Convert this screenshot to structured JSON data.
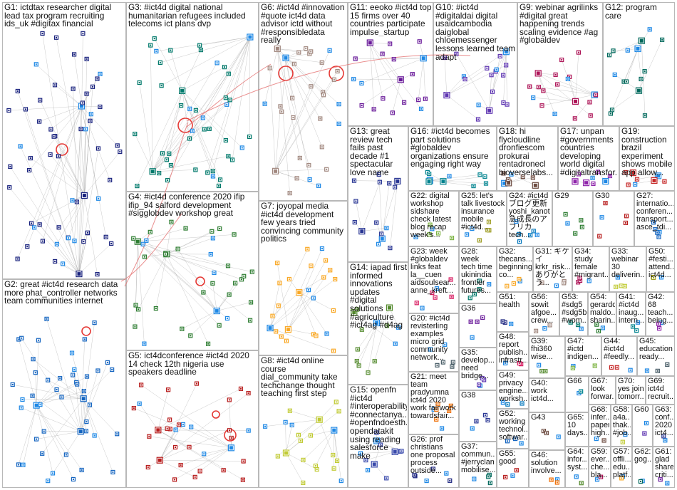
{
  "groups": [
    {
      "id": "G1",
      "label": "G1: ictdtax researcher digital lead tax program recruiting ids_uk #digitax financial"
    },
    {
      "id": "G2",
      "label": "G2: great #ict4d research data more phat_controller networks team communities internet"
    },
    {
      "id": "G3",
      "label": "G3: #ict4d digital national humanitarian refugees included telecoms ict plans dvp"
    },
    {
      "id": "G4",
      "label": "G4: #ict4d conference 2020 ifip ifip_94 salford development #sigglobdev workshop great"
    },
    {
      "id": "G5",
      "label": "G5: ict4dconference #ict4d 2020 14 check 12th nigeria use speakers deadline"
    },
    {
      "id": "G6",
      "label": "G6: #ict4d #innovation #quote ict4d data advisor ictd without #responsibledata really"
    },
    {
      "id": "G7",
      "label": "G7: joyopal media #ict4d development few years tried convincing community politics"
    },
    {
      "id": "G8",
      "label": "G8: #ict4d online course dial_community take techchange thought teaching first step"
    },
    {
      "id": "G9",
      "label": "G9: webinar agrilinks #digital great happening trends scaling evidence #ag #globaldev"
    },
    {
      "id": "G10",
      "label": "G10: #ict4d #digitaldai digital usaidcambodia daiglobal chloemessenger lessons learned team adapt"
    },
    {
      "id": "G11",
      "label": "G11: eeoko #ict4d top 15 firms over 40 countries participate impulse_startup"
    },
    {
      "id": "G12",
      "label": "G12: program care"
    },
    {
      "id": "G13",
      "label": "G13: great review tech fails past decade #1 spectacular love name"
    },
    {
      "id": "G14",
      "label": "G14: iapad first informed innovations updates #digital solutions #agriculture #ict4ag #d4ag"
    },
    {
      "id": "G15",
      "label": "G15: openfn #ict4d #interoperability #connectanya... #openfndoesth... opendatakit using reading salesforce make"
    },
    {
      "id": "G16",
      "label": "G16: #ict4d becomes part solutions #globaldev organizations ensure engaging right way"
    },
    {
      "id": "G17",
      "label": "G17: unpan #governments countries developing world digital #digitaltransfor..."
    },
    {
      "id": "G18",
      "label": "G18: hi flycloudline dronfiescom prokurai rentadronecl bioverselabs..."
    },
    {
      "id": "G19",
      "label": "G19: construction brazil experiment shows mobile app allow..."
    },
    {
      "id": "G20",
      "label": "G20: #ict4d revisterling examples micro grid community network..."
    },
    {
      "id": "G21",
      "label": "G21: meet team pradyumna ict4d 2020 work fairwork towardsfair..."
    },
    {
      "id": "G22",
      "label": "G22: digital workshop sidshare check latest blog recap week's..."
    },
    {
      "id": "G23",
      "label": "G23: week #globaldev links feat la__cuen aidsoulsear... anne_kreft..."
    },
    {
      "id": "G24",
      "label": "G24: #ict4d ブログ更新 yoshi_kanot 急成長のアフリカtech..."
    },
    {
      "id": "G25",
      "label": "G25: let's talk livestock insurance mobile #ict4d..."
    },
    {
      "id": "G26",
      "label": "G26: prof christians one proposal process outside..."
    },
    {
      "id": "G27",
      "label": "G27: internatio... conferen... transport... asce_tdi..."
    },
    {
      "id": "G28",
      "label": "G28: week tech time ukinindia frontier futures..."
    },
    {
      "id": "G29",
      "label": "G29"
    },
    {
      "id": "G30",
      "label": "G30"
    },
    {
      "id": "G31",
      "label": "G31: ギケイ krkr_risk... ありがとう..."
    },
    {
      "id": "G32",
      "label": "G32: thecans... beginning co..."
    },
    {
      "id": "G33",
      "label": "G33: webinar 30 deliverin..."
    },
    {
      "id": "G34",
      "label": "G34: study female #migrant..."
    },
    {
      "id": "G35",
      "label": "G35: develop... need bridge..."
    },
    {
      "id": "G36",
      "label": "G36"
    },
    {
      "id": "G37",
      "label": "G37: commun... #jerryclan mobilise..."
    },
    {
      "id": "G38",
      "label": "G38"
    },
    {
      "id": "G39",
      "label": "G39: fhi360 wise..."
    },
    {
      "id": "G40",
      "label": "G40: work ict4d..."
    },
    {
      "id": "G41",
      "label": "G41: #ict4d inaug... intern..."
    },
    {
      "id": "G42",
      "label": "G42: 68 teach... being..."
    },
    {
      "id": "G43",
      "label": "G43"
    },
    {
      "id": "G44",
      "label": "G44: #ict4d #feedly..."
    },
    {
      "id": "G45",
      "label": "G45: education ready..."
    },
    {
      "id": "G46",
      "label": "G46: solution involve..."
    },
    {
      "id": "G47",
      "label": "G47: #ictd indigen..."
    },
    {
      "id": "G48",
      "label": "G48: report publish... infrastr..."
    },
    {
      "id": "G49",
      "label": "G49: privacy engine... worksh..."
    },
    {
      "id": "G50",
      "label": "G50: #festi... attend... ict4d..."
    },
    {
      "id": "G51",
      "label": "G51: health"
    },
    {
      "id": "G52",
      "label": "G52: working technol... softwar..."
    },
    {
      "id": "G53",
      "label": "G53: #sdg5 #sdg5b #wom..."
    },
    {
      "id": "G54",
      "label": "G54: gerardo maldo... sharin..."
    },
    {
      "id": "G55",
      "label": "G55: good"
    },
    {
      "id": "G56",
      "label": "G56: sowit afgoe... crew..."
    },
    {
      "id": "G57",
      "label": "G57: offli... edu... platf..."
    },
    {
      "id": "G58",
      "label": "G58: a4a... thak... #job..."
    },
    {
      "id": "G59",
      "label": "G59: ever... che... bla..."
    },
    {
      "id": "G60",
      "label": "G60"
    },
    {
      "id": "G61",
      "label": "G61: glad share criti..."
    },
    {
      "id": "G62",
      "label": "G62: gog..."
    },
    {
      "id": "G63",
      "label": "G63: conf... 2020 ict4..."
    },
    {
      "id": "G64",
      "label": "G64: infor... syst..."
    },
    {
      "id": "G65",
      "label": "G65: 10 days..."
    },
    {
      "id": "G66",
      "label": "G66"
    },
    {
      "id": "G67",
      "label": "G67: look forwar... "
    },
    {
      "id": "G68",
      "label": "G68: infer... paper high..."
    },
    {
      "id": "G69",
      "label": "G69: ict4d recruit..."
    },
    {
      "id": "G70",
      "label": "G70: yes join tomorr..."
    }
  ],
  "colors": {
    "G1": "#1a237e",
    "G2": "#1565c0",
    "G3": "#00796b",
    "G4": "#2e7d32",
    "G5": "#b71c1c",
    "G6": "#a1887f",
    "G7": "#f9a825",
    "G8": "#c0ca33",
    "G9": "#ad1457",
    "G10": "#5e35b1",
    "G11": "#6a1b9a",
    "G12": "#00695c",
    "G13": "#283593",
    "G14": "#558b2f",
    "G15": "#3949ab",
    "G16": "#00838f",
    "G17": "#8e24aa",
    "G18": "#6d4c41",
    "G19": "#c62828",
    "edge": "#9e9e9e",
    "selfloop": "#e53935"
  }
}
